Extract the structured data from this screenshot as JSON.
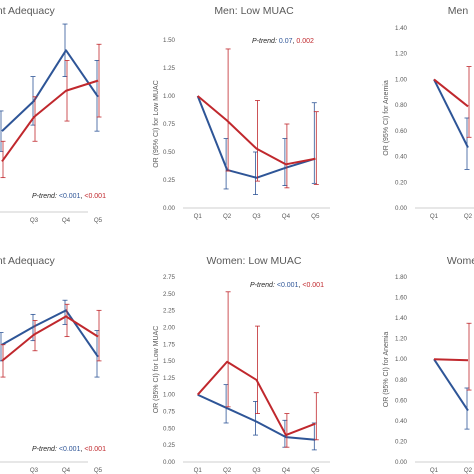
{
  "colors": {
    "blue": "#2e5597",
    "red": "#c0282d",
    "axis": "#bfbfbf",
    "text": "#595959"
  },
  "chart_data": [
    {
      "id": "p1",
      "type": "line",
      "title": "rient Adequacy",
      "ylabel": "",
      "categories": [
        "",
        "Q3",
        "Q4",
        "Q5"
      ],
      "ylim": [
        0.55,
        1.5
      ],
      "yticks": [],
      "ptrend": {
        "label": "P-trend: ",
        "blue": "<0.001",
        "sep": ", ",
        "red": "<0.001"
      },
      "series": [
        {
          "color": "blue",
          "values": [
            0.95,
            1.1,
            1.35,
            1.12
          ],
          "lo": [
            0.85,
            0.98,
            1.22,
            0.95
          ],
          "hi": [
            1.05,
            1.22,
            1.48,
            1.3
          ]
        },
        {
          "color": "red",
          "values": [
            0.8,
            1.02,
            1.15,
            1.2
          ],
          "lo": [
            0.72,
            0.9,
            1.0,
            1.02
          ],
          "hi": [
            0.9,
            1.12,
            1.3,
            1.38
          ]
        }
      ]
    },
    {
      "id": "p2",
      "type": "line",
      "title": "Men: Low MUAC",
      "ylabel": "OR (95% CI) for Low MUAC",
      "categories": [
        "Q1",
        "Q2",
        "Q3",
        "Q4",
        "Q5"
      ],
      "ylim": [
        0,
        1.5
      ],
      "yticks": [
        "0.00",
        "0.25",
        "0.50",
        "0.75",
        "1.00",
        "1.25",
        "1.50"
      ],
      "ptrend": {
        "label": "P-trend: ",
        "blue": "0.07",
        "sep": ", ",
        "red": "0.002"
      },
      "series": [
        {
          "color": "blue",
          "values": [
            1.0,
            0.34,
            0.27,
            0.36,
            0.44
          ],
          "lo": [
            1.0,
            0.17,
            0.12,
            0.2,
            0.22
          ],
          "hi": [
            1.0,
            0.62,
            0.5,
            0.62,
            0.94
          ]
        },
        {
          "color": "red",
          "values": [
            1.0,
            0.78,
            0.53,
            0.39,
            0.44
          ],
          "lo": [
            1.0,
            0.33,
            0.24,
            0.18,
            0.21
          ],
          "hi": [
            1.0,
            1.42,
            0.96,
            0.75,
            0.86
          ]
        }
      ]
    },
    {
      "id": "p3",
      "type": "line",
      "title": "Men",
      "ylabel": "OR (95% CI) for Anemia",
      "categories": [
        "Q1",
        "Q2"
      ],
      "ylim": [
        0,
        1.4
      ],
      "yticks": [
        "0.00",
        "0.20",
        "0.40",
        "0.60",
        "0.80",
        "1.00",
        "1.20",
        "1.40"
      ],
      "ptrend": null,
      "series": [
        {
          "color": "blue",
          "values": [
            1.0,
            0.47
          ],
          "lo": [
            1.0,
            0.3
          ],
          "hi": [
            1.0,
            0.7
          ]
        },
        {
          "color": "red",
          "values": [
            1.0,
            0.79
          ],
          "lo": [
            1.0,
            0.55
          ],
          "hi": [
            1.0,
            1.1
          ]
        }
      ]
    },
    {
      "id": "p4",
      "type": "line",
      "title": "rient Adequacy",
      "ylabel": "",
      "categories": [
        "",
        "Q3",
        "Q4",
        "Q5"
      ],
      "ylim": [
        0.7,
        1.6
      ],
      "yticks": [],
      "ptrend": {
        "label": "P-trend: ",
        "blue": "<0.001",
        "sep": ", ",
        "red": "<0.001"
      },
      "series": [
        {
          "color": "blue",
          "values": [
            1.28,
            1.37,
            1.45,
            1.22
          ],
          "lo": [
            1.2,
            1.3,
            1.38,
            1.12
          ],
          "hi": [
            1.34,
            1.43,
            1.5,
            1.35
          ]
        },
        {
          "color": "red",
          "values": [
            1.2,
            1.33,
            1.42,
            1.32
          ],
          "lo": [
            1.12,
            1.25,
            1.32,
            1.2
          ],
          "hi": [
            1.28,
            1.4,
            1.48,
            1.45
          ]
        }
      ]
    },
    {
      "id": "p5",
      "type": "line",
      "title": "Women: Low MUAC",
      "ylabel": "OR (95% CI) for Low MUAC",
      "categories": [
        "Q1",
        "Q2",
        "Q3",
        "Q4",
        "Q5"
      ],
      "ylim": [
        0,
        2.75
      ],
      "yticks": [
        "0.00",
        "0.25",
        "0.50",
        "0.75",
        "1.00",
        "1.25",
        "1.50",
        "1.75",
        "2.00",
        "2.25",
        "2.50",
        "2.75"
      ],
      "ptrend": {
        "label": "P-trend: ",
        "blue": "<0.001",
        "sep": ", ",
        "red": "<0.001"
      },
      "series": [
        {
          "color": "blue",
          "values": [
            1.0,
            0.8,
            0.6,
            0.37,
            0.33
          ],
          "lo": [
            1.0,
            0.58,
            0.4,
            0.22,
            0.18
          ],
          "hi": [
            1.0,
            1.15,
            0.9,
            0.62,
            0.58
          ]
        },
        {
          "color": "red",
          "values": [
            1.0,
            1.49,
            1.22,
            0.4,
            0.57
          ],
          "lo": [
            1.0,
            0.82,
            0.72,
            0.22,
            0.33
          ],
          "hi": [
            1.0,
            2.53,
            2.02,
            0.72,
            1.03
          ]
        }
      ]
    },
    {
      "id": "p6",
      "type": "line",
      "title": "Wome",
      "ylabel": "OR (95% CI) for Anemia",
      "categories": [
        "Q1",
        "Q2"
      ],
      "ylim": [
        0,
        1.8
      ],
      "yticks": [
        "0.00",
        "0.20",
        "0.40",
        "0.60",
        "0.80",
        "1.00",
        "1.20",
        "1.40",
        "1.60",
        "1.80"
      ],
      "ptrend": null,
      "series": [
        {
          "color": "blue",
          "values": [
            1.0,
            0.5
          ],
          "lo": [
            1.0,
            0.32
          ],
          "hi": [
            1.0,
            0.72
          ]
        },
        {
          "color": "red",
          "values": [
            1.0,
            0.99
          ],
          "lo": [
            1.0,
            0.7
          ],
          "hi": [
            1.0,
            1.35
          ]
        }
      ]
    }
  ]
}
